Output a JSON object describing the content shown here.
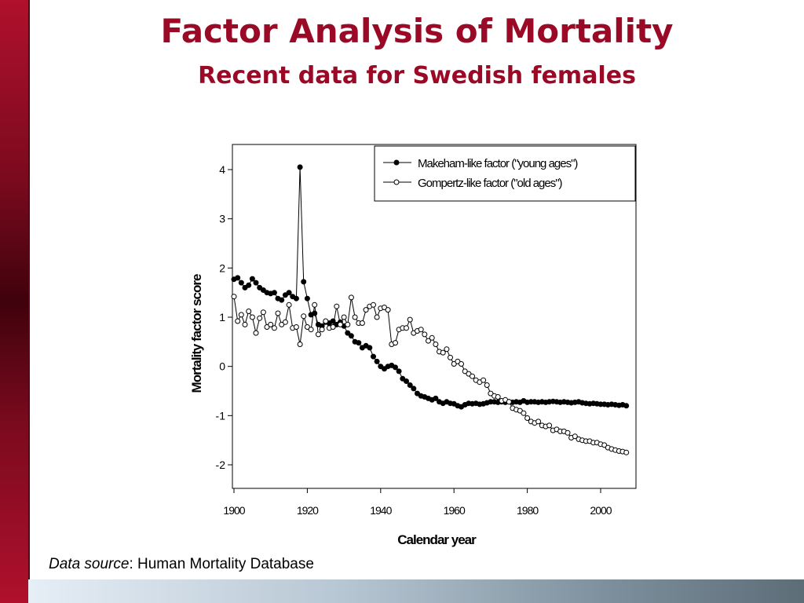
{
  "slide": {
    "title": "Factor Analysis of Mortality",
    "subtitle": "Recent data for Swedish females",
    "source_label": "Data source",
    "source_value": ": Human Mortality Database"
  },
  "colors": {
    "title": "#9a0a26",
    "sidebar": "#7a0a1e"
  },
  "chart_data": {
    "type": "scatter",
    "title": "",
    "xlabel": "Calendar year",
    "ylabel": "Mortality factor score",
    "xlim": [
      1900,
      2007
    ],
    "ylim": [
      -2.5,
      4.5
    ],
    "xticks": [
      1900,
      1920,
      1940,
      1960,
      1980,
      2000
    ],
    "yticks": [
      -2,
      -1,
      0,
      1,
      2,
      3,
      4
    ],
    "grid": false,
    "legend": "top-right",
    "series": [
      {
        "name": "Makeham-like factor (\"young ages\")",
        "marker": "filled-circle",
        "x": [
          1900,
          1901,
          1902,
          1903,
          1904,
          1905,
          1906,
          1907,
          1908,
          1909,
          1910,
          1911,
          1912,
          1913,
          1914,
          1915,
          1916,
          1917,
          1918,
          1919,
          1920,
          1921,
          1922,
          1923,
          1924,
          1925,
          1926,
          1927,
          1928,
          1929,
          1930,
          1931,
          1932,
          1933,
          1934,
          1935,
          1936,
          1937,
          1938,
          1939,
          1940,
          1941,
          1942,
          1943,
          1944,
          1945,
          1946,
          1947,
          1948,
          1949,
          1950,
          1951,
          1952,
          1953,
          1954,
          1955,
          1956,
          1957,
          1958,
          1959,
          1960,
          1961,
          1962,
          1963,
          1964,
          1965,
          1966,
          1967,
          1968,
          1969,
          1970,
          1971,
          1972,
          1973,
          1974,
          1975,
          1976,
          1977,
          1978,
          1979,
          1980,
          1981,
          1982,
          1983,
          1984,
          1985,
          1986,
          1987,
          1988,
          1989,
          1990,
          1991,
          1992,
          1993,
          1994,
          1995,
          1996,
          1997,
          1998,
          1999,
          2000,
          2001,
          2002,
          2003,
          2004,
          2005,
          2006,
          2007
        ],
        "y": [
          1.77,
          1.8,
          1.7,
          1.6,
          1.65,
          1.78,
          1.7,
          1.6,
          1.55,
          1.5,
          1.48,
          1.5,
          1.38,
          1.35,
          1.45,
          1.5,
          1.42,
          1.38,
          4.05,
          1.72,
          1.38,
          1.05,
          1.08,
          0.85,
          0.82,
          0.9,
          0.88,
          0.92,
          0.85,
          0.9,
          0.82,
          0.68,
          0.62,
          0.5,
          0.48,
          0.38,
          0.42,
          0.38,
          0.2,
          0.1,
          0.0,
          -0.05,
          0.0,
          0.02,
          -0.02,
          -0.1,
          -0.25,
          -0.3,
          -0.38,
          -0.45,
          -0.55,
          -0.6,
          -0.62,
          -0.65,
          -0.68,
          -0.65,
          -0.72,
          -0.75,
          -0.72,
          -0.75,
          -0.76,
          -0.8,
          -0.82,
          -0.78,
          -0.75,
          -0.76,
          -0.75,
          -0.77,
          -0.76,
          -0.74,
          -0.72,
          -0.72,
          -0.73,
          -0.72,
          -0.73,
          -0.72,
          -0.73,
          -0.72,
          -0.73,
          -0.7,
          -0.73,
          -0.72,
          -0.72,
          -0.73,
          -0.72,
          -0.73,
          -0.72,
          -0.71,
          -0.72,
          -0.73,
          -0.72,
          -0.73,
          -0.74,
          -0.73,
          -0.72,
          -0.74,
          -0.75,
          -0.76,
          -0.75,
          -0.76,
          -0.77,
          -0.77,
          -0.78,
          -0.77,
          -0.78,
          -0.79,
          -0.78,
          -0.8
        ]
      },
      {
        "name": "Gompertz-like factor (\"old ages\")",
        "marker": "open-circle",
        "x": [
          1900,
          1901,
          1902,
          1903,
          1904,
          1905,
          1906,
          1907,
          1908,
          1909,
          1910,
          1911,
          1912,
          1913,
          1914,
          1915,
          1916,
          1917,
          1918,
          1919,
          1920,
          1921,
          1922,
          1923,
          1924,
          1925,
          1926,
          1927,
          1928,
          1929,
          1930,
          1931,
          1932,
          1933,
          1934,
          1935,
          1936,
          1937,
          1938,
          1939,
          1940,
          1941,
          1942,
          1943,
          1944,
          1945,
          1946,
          1947,
          1948,
          1949,
          1950,
          1951,
          1952,
          1953,
          1954,
          1955,
          1956,
          1957,
          1958,
          1959,
          1960,
          1961,
          1962,
          1963,
          1964,
          1965,
          1966,
          1967,
          1968,
          1969,
          1970,
          1971,
          1972,
          1973,
          1974,
          1975,
          1976,
          1977,
          1978,
          1979,
          1980,
          1981,
          1982,
          1983,
          1984,
          1985,
          1986,
          1987,
          1988,
          1989,
          1990,
          1991,
          1992,
          1993,
          1994,
          1995,
          1996,
          1997,
          1998,
          1999,
          2000,
          2001,
          2002,
          2003,
          2004,
          2005,
          2006,
          2007
        ],
        "y": [
          1.42,
          0.92,
          1.05,
          0.85,
          1.12,
          1.0,
          0.68,
          0.98,
          1.1,
          0.8,
          0.85,
          0.78,
          1.08,
          0.85,
          0.9,
          1.25,
          0.78,
          0.8,
          0.45,
          1.02,
          0.8,
          0.75,
          1.25,
          0.65,
          0.75,
          0.92,
          0.78,
          0.8,
          1.22,
          0.85,
          1.0,
          0.85,
          1.4,
          1.0,
          0.88,
          0.88,
          1.15,
          1.22,
          1.25,
          1.0,
          1.18,
          1.2,
          1.15,
          0.45,
          0.48,
          0.75,
          0.78,
          0.78,
          0.95,
          0.68,
          0.72,
          0.75,
          0.65,
          0.52,
          0.58,
          0.45,
          0.3,
          0.28,
          0.35,
          0.18,
          0.05,
          0.1,
          0.05,
          -0.1,
          -0.15,
          -0.2,
          -0.28,
          -0.32,
          -0.28,
          -0.38,
          -0.55,
          -0.6,
          -0.62,
          -0.7,
          -0.68,
          -0.72,
          -0.85,
          -0.88,
          -0.9,
          -0.95,
          -1.05,
          -1.12,
          -1.15,
          -1.12,
          -1.2,
          -1.22,
          -1.2,
          -1.3,
          -1.28,
          -1.32,
          -1.32,
          -1.35,
          -1.45,
          -1.42,
          -1.48,
          -1.5,
          -1.52,
          -1.52,
          -1.55,
          -1.55,
          -1.58,
          -1.6,
          -1.65,
          -1.68,
          -1.7,
          -1.72,
          -1.73,
          -1.75
        ]
      }
    ]
  }
}
